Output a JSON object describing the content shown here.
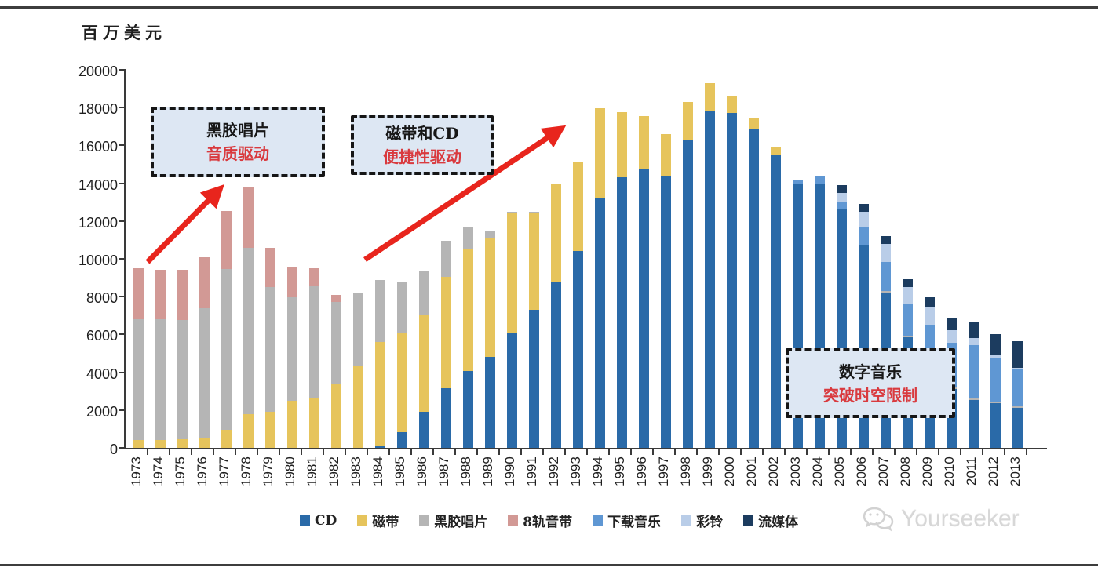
{
  "page": {
    "unit_label": "百万美元",
    "watermark_text": "Yourseeker"
  },
  "annotations": [
    {
      "line1": "黑胶唱片",
      "line2": "音质驱动"
    },
    {
      "line1": "磁带和CD",
      "line2": "便捷性驱动"
    },
    {
      "line1": "数字音乐",
      "line2": "突破时空限制"
    }
  ],
  "chart_data": {
    "type": "bar",
    "stacked": true,
    "title": "",
    "xlabel": "",
    "ylabel": "百万美元",
    "ylim": [
      0,
      20000
    ],
    "ytick_step": 2000,
    "grid": false,
    "legend_position": "bottom",
    "arrow_color": "#e8251d",
    "categories": [
      "1973",
      "1974",
      "1975",
      "1976",
      "1977",
      "1978",
      "1979",
      "1980",
      "1981",
      "1982",
      "1983",
      "1984",
      "1985",
      "1986",
      "1987",
      "1988",
      "1989",
      "1990",
      "1991",
      "1992",
      "1993",
      "1994",
      "1995",
      "1996",
      "1997",
      "1998",
      "1999",
      "2000",
      "2001",
      "2002",
      "2003",
      "2004",
      "2005",
      "2006",
      "2007",
      "2008",
      "2009",
      "2010",
      "2011",
      "2012",
      "2013"
    ],
    "series": [
      {
        "name": "CD",
        "color": "#2a6aa8",
        "values": [
          0,
          0,
          0,
          0,
          0,
          0,
          0,
          0,
          0,
          0,
          0,
          100,
          850,
          1900,
          3150,
          4050,
          4800,
          6100,
          7300,
          8750,
          10400,
          13250,
          14300,
          14750,
          14400,
          16300,
          17850,
          17700,
          16900,
          15500,
          14000,
          13950,
          12600,
          10700,
          8200,
          5850,
          4200,
          3100,
          2550,
          2350,
          2100
        ]
      },
      {
        "name": "磁带",
        "color": "#e6c45c",
        "values": [
          400,
          400,
          450,
          500,
          950,
          1800,
          1900,
          2500,
          2650,
          3400,
          4300,
          5500,
          5250,
          5150,
          5900,
          6500,
          6300,
          6300,
          5150,
          5250,
          4700,
          4700,
          3450,
          2800,
          2200,
          2000,
          1450,
          900,
          550,
          400,
          0,
          0,
          0,
          0,
          0,
          0,
          0,
          0,
          0,
          0,
          0
        ]
      },
      {
        "name": "黑胶唱片",
        "color": "#b5b5b5",
        "values": [
          6400,
          6400,
          6300,
          6900,
          8500,
          8800,
          6600,
          5450,
          5950,
          4300,
          3900,
          3300,
          2700,
          2300,
          1900,
          1150,
          350,
          100,
          50,
          0,
          0,
          0,
          0,
          0,
          0,
          0,
          0,
          0,
          0,
          0,
          0,
          0,
          0,
          0,
          80,
          80,
          80,
          80,
          80,
          80,
          80
        ]
      },
      {
        "name": "8轨音带",
        "color": "#d29995",
        "values": [
          2700,
          2600,
          2650,
          2700,
          3100,
          3200,
          2100,
          1650,
          900,
          400,
          0,
          0,
          0,
          0,
          0,
          0,
          0,
          0,
          0,
          0,
          0,
          0,
          0,
          0,
          0,
          0,
          0,
          0,
          0,
          0,
          0,
          0,
          0,
          0,
          0,
          0,
          0,
          0,
          0,
          0,
          0
        ]
      },
      {
        "name": "下载音乐",
        "color": "#5f97d3",
        "values": [
          0,
          0,
          0,
          0,
          0,
          0,
          0,
          0,
          0,
          0,
          0,
          0,
          0,
          0,
          0,
          0,
          0,
          0,
          0,
          0,
          0,
          0,
          0,
          0,
          0,
          0,
          0,
          0,
          0,
          0,
          200,
          400,
          450,
          1000,
          1550,
          1700,
          2250,
          2400,
          2800,
          2350,
          1950
        ]
      },
      {
        "name": "彩铃",
        "color": "#b9cde8",
        "values": [
          0,
          0,
          0,
          0,
          0,
          0,
          0,
          0,
          0,
          0,
          0,
          0,
          0,
          0,
          0,
          0,
          0,
          0,
          0,
          0,
          0,
          0,
          0,
          0,
          0,
          0,
          0,
          0,
          0,
          0,
          0,
          0,
          450,
          780,
          950,
          880,
          950,
          650,
          400,
          120,
          120
        ]
      },
      {
        "name": "流媒体",
        "color": "#1c3c5f",
        "values": [
          0,
          0,
          0,
          0,
          0,
          0,
          0,
          0,
          0,
          0,
          0,
          0,
          0,
          0,
          0,
          0,
          0,
          0,
          0,
          0,
          0,
          0,
          0,
          0,
          0,
          0,
          0,
          0,
          0,
          0,
          0,
          0,
          400,
          420,
          420,
          420,
          500,
          600,
          850,
          1100,
          1400
        ]
      }
    ]
  }
}
